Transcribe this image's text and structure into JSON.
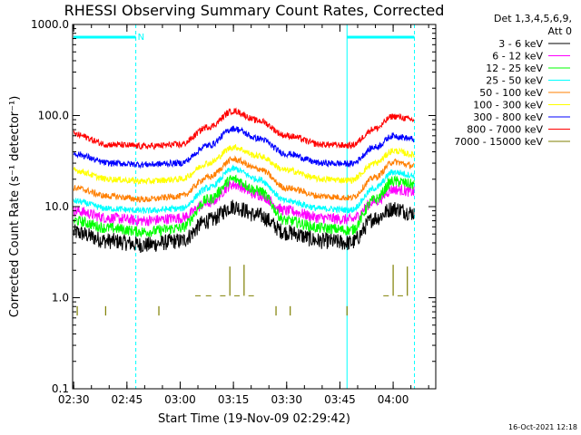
{
  "chart_data": {
    "type": "line",
    "title": "RHESSI Observing Summary Count Rates, Corrected",
    "xlabel": "Start Time (19-Nov-09 02:29:42)",
    "ylabel": "Corrected Count Rate (s⁻¹ detector⁻¹)",
    "yscale": "log",
    "ylim": [
      0.1,
      1000
    ],
    "xlim": [
      "02:29:42",
      "04:12:00"
    ],
    "x_ticks": [
      "02:30",
      "02:45",
      "03:00",
      "03:15",
      "03:30",
      "03:45",
      "04:00"
    ],
    "y_ticks": [
      "0.1",
      "1.0",
      "10.0",
      "100.0",
      "1000.0"
    ],
    "legend_header": [
      "Det 1,3,4,5,6,9,",
      "Att 0"
    ],
    "legend_position": "top-right outside",
    "footer_stamp": "16-Oct-2021 12:18",
    "annotations": [
      {
        "text": "N",
        "at": "02:47"
      }
    ],
    "night_bars": [
      {
        "start": "02:29:42",
        "end": "02:47:30"
      },
      {
        "start": "03:47:00",
        "end": "04:06:00"
      }
    ],
    "series": [
      {
        "name": "3 - 6 keV",
        "color": "#000000",
        "x": [
          "02:30",
          "02:40",
          "02:50",
          "03:00",
          "03:08",
          "03:15",
          "03:22",
          "03:30",
          "03:40",
          "03:48",
          "03:55",
          "04:00",
          "04:06"
        ],
        "values": [
          5.2,
          4.2,
          3.8,
          4.2,
          7.0,
          10.0,
          8.0,
          5.2,
          4.2,
          4.0,
          7.5,
          9.5,
          8.5
        ]
      },
      {
        "name": "6 - 12 keV",
        "color": "#ff00ff",
        "x": [
          "02:30",
          "02:40",
          "02:50",
          "03:00",
          "03:08",
          "03:15",
          "03:22",
          "03:30",
          "03:40",
          "03:48",
          "03:55",
          "04:00",
          "04:06"
        ],
        "values": [
          9.0,
          7.5,
          7.0,
          7.5,
          11.0,
          17.5,
          13.5,
          9.0,
          7.5,
          7.2,
          11.5,
          15.5,
          14.5
        ]
      },
      {
        "name": "12 - 25 keV",
        "color": "#00ff00",
        "x": [
          "02:30",
          "02:40",
          "02:50",
          "03:00",
          "03:08",
          "03:15",
          "03:22",
          "03:30",
          "03:40",
          "03:48",
          "03:55",
          "04:00",
          "04:06"
        ],
        "values": [
          7.0,
          5.8,
          5.3,
          5.8,
          12.0,
          20.0,
          15.0,
          7.0,
          5.8,
          5.5,
          12.0,
          19.0,
          17.5
        ]
      },
      {
        "name": "25 - 50 keV",
        "color": "#00ffff",
        "x": [
          "02:30",
          "02:40",
          "02:50",
          "03:00",
          "03:08",
          "03:15",
          "03:22",
          "03:30",
          "03:40",
          "03:48",
          "03:55",
          "04:00",
          "04:06"
        ],
        "values": [
          11.5,
          9.5,
          9.0,
          9.5,
          16.0,
          26.0,
          20.0,
          11.5,
          9.5,
          9.2,
          16.0,
          24.0,
          22.0
        ]
      },
      {
        "name": "50 - 100 keV",
        "color": "#ff7f00",
        "x": [
          "02:30",
          "02:40",
          "02:50",
          "03:00",
          "03:08",
          "03:15",
          "03:22",
          "03:30",
          "03:40",
          "03:48",
          "03:55",
          "04:00",
          "04:06"
        ],
        "values": [
          16.0,
          13.0,
          12.0,
          13.0,
          21.0,
          33.0,
          26.0,
          16.0,
          13.0,
          12.5,
          21.0,
          31.0,
          28.0
        ]
      },
      {
        "name": "100 - 300 keV",
        "color": "#ffff00",
        "x": [
          "02:30",
          "02:40",
          "02:50",
          "03:00",
          "03:08",
          "03:15",
          "03:22",
          "03:30",
          "03:40",
          "03:48",
          "03:55",
          "04:00",
          "04:06"
        ],
        "values": [
          25.0,
          20.0,
          19.0,
          20.0,
          30.0,
          45.0,
          36.0,
          25.0,
          20.0,
          19.5,
          30.0,
          41.0,
          37.0
        ]
      },
      {
        "name": "300 - 800 keV",
        "color": "#0000ff",
        "x": [
          "02:30",
          "02:40",
          "02:50",
          "03:00",
          "03:08",
          "03:15",
          "03:22",
          "03:30",
          "03:40",
          "03:48",
          "03:55",
          "04:00",
          "04:06"
        ],
        "values": [
          38.0,
          30.0,
          29.0,
          30.0,
          47.0,
          72.0,
          56.0,
          38.0,
          30.0,
          29.5,
          45.0,
          60.0,
          55.0
        ]
      },
      {
        "name": "800 - 7000 keV",
        "color": "#ff0000",
        "x": [
          "02:30",
          "02:40",
          "02:50",
          "03:00",
          "03:08",
          "03:15",
          "03:22",
          "03:30",
          "03:40",
          "03:48",
          "03:55",
          "04:00",
          "04:06"
        ],
        "values": [
          62.0,
          48.0,
          46.0,
          48.0,
          75.0,
          112.0,
          88.0,
          60.0,
          48.0,
          47.0,
          72.0,
          98.0,
          90.0
        ]
      },
      {
        "name": "7000 - 15000 keV",
        "color": "#7f7f00",
        "x": [
          "02:31",
          "02:39",
          "02:54",
          "03:05",
          "03:08",
          "03:12",
          "03:14",
          "03:16",
          "03:18",
          "03:20",
          "03:27",
          "03:31",
          "03:47",
          "03:58",
          "04:00",
          "04:02",
          "04:04"
        ],
        "values": [
          0.85,
          0.85,
          0.85,
          1.05,
          1.05,
          1.05,
          2.2,
          1.05,
          2.3,
          1.05,
          0.85,
          0.85,
          0.85,
          1.05,
          2.3,
          1.05,
          2.2
        ]
      }
    ]
  }
}
